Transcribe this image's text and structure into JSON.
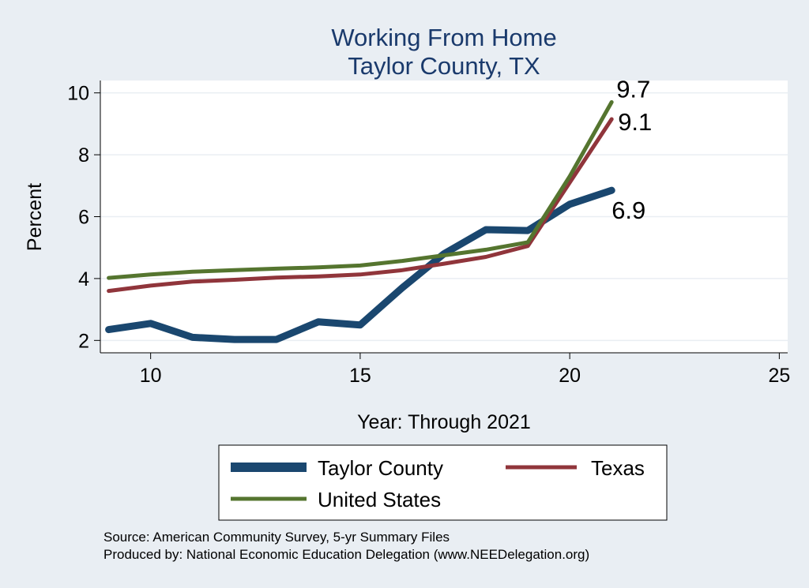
{
  "chart_data": {
    "type": "line",
    "title": "Working From Home",
    "subtitle": "Taylor County, TX",
    "xlabel": "Year: Through 2021",
    "ylabel": "Percent",
    "xlim": [
      8.8,
      25.2
    ],
    "ylim": [
      1.6,
      10.4
    ],
    "xticks": [
      10,
      15,
      20,
      25
    ],
    "yticks": [
      2,
      4,
      6,
      8,
      10
    ],
    "grid": true,
    "legend_position": "bottom",
    "series": [
      {
        "name": "Taylor County",
        "color": "#1a476f",
        "x": [
          9,
          10,
          11,
          12,
          13,
          14,
          15,
          16,
          17,
          18,
          19,
          20,
          21
        ],
        "y": [
          2.35,
          2.55,
          2.1,
          2.03,
          2.03,
          2.6,
          2.5,
          3.7,
          4.8,
          5.58,
          5.55,
          6.4,
          6.85
        ],
        "end_label": "6.9"
      },
      {
        "name": "Texas",
        "color": "#90353b",
        "x": [
          9,
          10,
          11,
          12,
          13,
          14,
          15,
          16,
          17,
          18,
          19,
          20,
          21
        ],
        "y": [
          3.6,
          3.77,
          3.9,
          3.96,
          4.03,
          4.07,
          4.13,
          4.27,
          4.48,
          4.7,
          5.05,
          7.1,
          9.15
        ],
        "end_label": "9.1"
      },
      {
        "name": "United States",
        "color": "#55752f",
        "x": [
          9,
          10,
          11,
          12,
          13,
          14,
          15,
          16,
          17,
          18,
          19,
          20,
          21
        ],
        "y": [
          4.02,
          4.13,
          4.22,
          4.27,
          4.32,
          4.36,
          4.42,
          4.57,
          4.75,
          4.93,
          5.17,
          7.3,
          9.7
        ],
        "end_label": "9.7"
      }
    ]
  },
  "footer": {
    "source": "Source: American Community Survey, 5-yr Summary Files",
    "produced": "Produced by: National Economic Education Delegation (www.NEEDelegation.org)"
  }
}
